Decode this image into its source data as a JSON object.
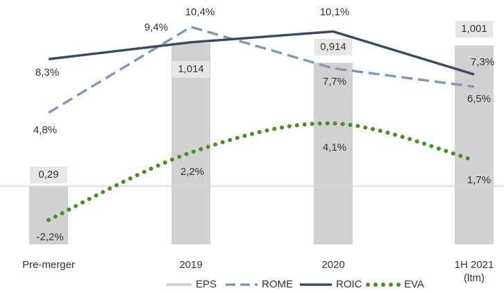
{
  "chart_data": {
    "type": "combo",
    "categories": [
      "Pre-merger",
      "2019",
      "2020",
      "1H 2021 (ltm)"
    ],
    "ylim": [
      -3.8,
      10.8
    ],
    "y2lim": [
      0,
      1.125
    ],
    "zero_line": true,
    "legend": "bottom",
    "series": [
      {
        "name": "EPS",
        "type": "bar",
        "axis": "y2",
        "color": "#d3d0d2",
        "values": [
          0.29,
          1.014,
          0.914,
          1.001
        ],
        "value_labels": [
          "0,29",
          "1,014",
          "0,914",
          "1,001"
        ]
      },
      {
        "name": "ROME",
        "type": "line",
        "style": "dashed",
        "color": "#8497b5",
        "values": [
          4.8,
          10.4,
          7.7,
          6.5
        ],
        "value_labels": [
          "4,8%",
          "10,4%",
          "7,7%",
          "6,5%"
        ]
      },
      {
        "name": "ROIC",
        "type": "line",
        "style": "solid",
        "color": "#3e4a61",
        "values": [
          8.3,
          9.4,
          10.1,
          7.3
        ],
        "value_labels": [
          "8,3%",
          "9,4%",
          "10,1%",
          "7,3%"
        ]
      },
      {
        "name": "EVA",
        "type": "line",
        "style": "dotted",
        "smooth": true,
        "color": "#4f8a2e",
        "values": [
          -2.2,
          2.2,
          4.1,
          1.7
        ],
        "value_labels": [
          "-2,2%",
          "2,2%",
          "4,1%",
          "1,7%"
        ]
      }
    ]
  }
}
